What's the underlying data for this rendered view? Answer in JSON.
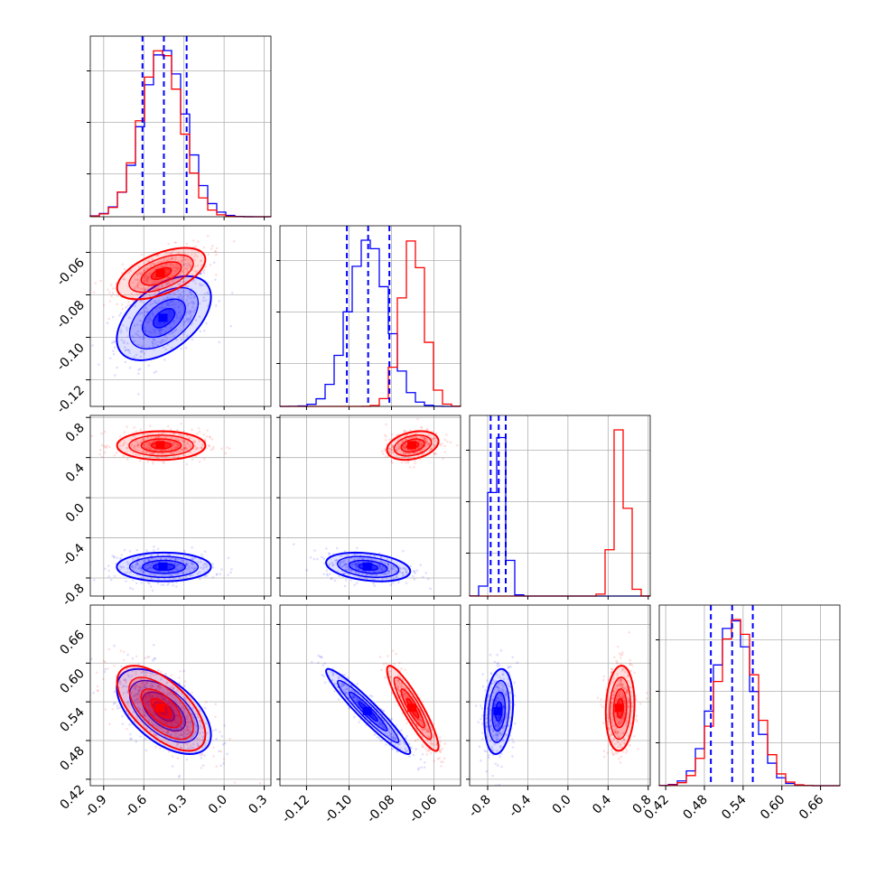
{
  "chart_data": {
    "type": "corner",
    "title": "",
    "series_colors": {
      "blue": "#0000ff",
      "red": "#ff0000"
    },
    "grid": true,
    "quantile_lines": {
      "style": "dashed",
      "color": "#0000ff",
      "series": "blue"
    },
    "params": [
      {
        "range": [
          -1.0,
          0.35
        ],
        "ticks": [
          "-0.9",
          "-0.6",
          "-0.3",
          "0.0",
          "0.3"
        ]
      },
      {
        "range": [
          -0.1325,
          -0.0475
        ],
        "ticks": [
          "-0.12",
          "-0.10",
          "-0.08",
          "-0.06"
        ]
      },
      {
        "range": [
          -0.98,
          0.82
        ],
        "ticks": [
          "-0.8",
          "-0.4",
          "0.0",
          "0.4",
          "0.8"
        ]
      },
      {
        "range": [
          0.41,
          0.69
        ],
        "ticks": [
          "0.42",
          "0.48",
          "0.54",
          "0.60",
          "0.66"
        ]
      }
    ],
    "series": [
      {
        "color_key": "blue",
        "mean": [
          -0.45,
          -0.091,
          -0.69,
          0.525
        ],
        "sd": [
          0.16,
          0.009,
          0.065,
          0.03
        ],
        "correlation": {
          "0-1": 0.5,
          "0-3": -0.55,
          "1-3": -0.95,
          "2-3": 0.2,
          "1-2": -0.3
        },
        "quantiles": [
          [
            -0.61,
            -0.45,
            -0.28
          ],
          [
            -0.101,
            -0.091,
            -0.081
          ],
          [
            -0.77,
            -0.69,
            -0.62
          ],
          [
            0.49,
            0.523,
            0.555
          ]
        ]
      },
      {
        "color_key": "red",
        "mean": [
          -0.47,
          -0.07,
          0.52,
          0.53
        ],
        "sd": [
          0.15,
          0.0055,
          0.065,
          0.03
        ],
        "correlation": {
          "0-1": 0.55,
          "0-3": -0.62,
          "1-3": -0.9,
          "2-3": 0.1,
          "1-2": 0.3
        }
      }
    ]
  }
}
